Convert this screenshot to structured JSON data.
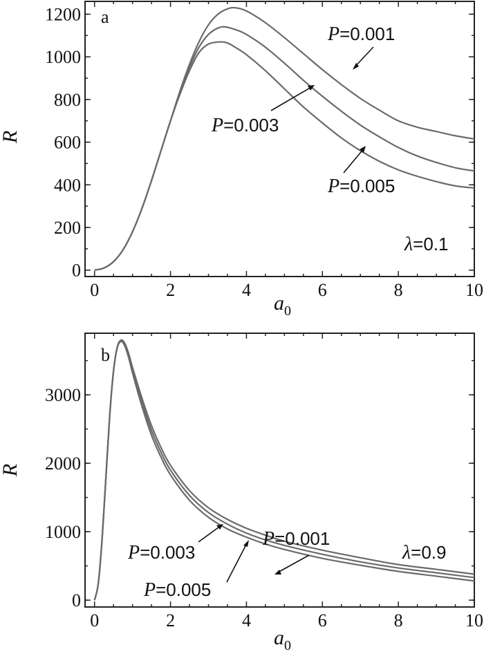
{
  "chart_data": [
    {
      "type": "line",
      "panel_label": "a",
      "xlabel": "a",
      "xlabel_sub": "0",
      "ylabel": "R",
      "xlim": [
        -0.25,
        10
      ],
      "ylim": [
        -30,
        1260
      ],
      "xticks": [
        0,
        2,
        4,
        6,
        8,
        10
      ],
      "yticks": [
        0,
        200,
        400,
        600,
        800,
        1000,
        1200
      ],
      "annotation": {
        "symbol": "λ",
        "text": "=0.1"
      },
      "grid": false,
      "series": [
        {
          "name": "P=0.001",
          "x": [
            0,
            0.25,
            0.5,
            0.75,
            1,
            1.25,
            1.5,
            1.75,
            2,
            2.25,
            2.5,
            2.75,
            3,
            3.25,
            3.5,
            3.7,
            4,
            4.5,
            5,
            5.5,
            6,
            6.5,
            7,
            7.5,
            8,
            8.5,
            9,
            9.5,
            10
          ],
          "y": [
            0,
            10,
            40,
            95,
            180,
            290,
            420,
            560,
            700,
            840,
            965,
            1070,
            1150,
            1200,
            1225,
            1230,
            1215,
            1160,
            1090,
            1015,
            940,
            870,
            805,
            750,
            700,
            670,
            650,
            630,
            615
          ]
        },
        {
          "name": "P=0.003",
          "x": [
            0,
            0.25,
            0.5,
            0.75,
            1,
            1.25,
            1.5,
            1.75,
            2,
            2.25,
            2.5,
            2.75,
            3,
            3.25,
            3.45,
            3.75,
            4,
            4.5,
            5,
            5.5,
            6,
            6.5,
            7,
            7.5,
            8,
            8.5,
            9,
            9.5,
            10
          ],
          "y": [
            0,
            10,
            40,
            95,
            180,
            290,
            420,
            560,
            700,
            830,
            950,
            1045,
            1105,
            1135,
            1140,
            1125,
            1105,
            1045,
            970,
            890,
            815,
            745,
            680,
            625,
            575,
            535,
            505,
            480,
            465
          ]
        },
        {
          "name": "P=0.005",
          "x": [
            0,
            0.25,
            0.5,
            0.75,
            1,
            1.25,
            1.5,
            1.75,
            2,
            2.25,
            2.5,
            2.75,
            3,
            3.3,
            3.5,
            3.75,
            4,
            4.5,
            5,
            5.5,
            6,
            6.5,
            7,
            7.5,
            8,
            8.5,
            9,
            9.5,
            10
          ],
          "y": [
            0,
            10,
            40,
            95,
            180,
            290,
            420,
            560,
            700,
            825,
            935,
            1020,
            1060,
            1070,
            1065,
            1040,
            1010,
            935,
            850,
            765,
            690,
            620,
            560,
            510,
            470,
            440,
            415,
            395,
            385
          ]
        }
      ],
      "labels": [
        {
          "prefix": "P",
          "text": "=0.001"
        },
        {
          "prefix": "P",
          "text": "=0.003"
        },
        {
          "prefix": "P",
          "text": "=0.005"
        }
      ]
    },
    {
      "type": "line",
      "panel_label": "b",
      "xlabel": "a",
      "xlabel_sub": "0",
      "ylabel": "R",
      "xlim": [
        -0.25,
        10
      ],
      "ylim": [
        -100,
        3900
      ],
      "xticks": [
        0,
        2,
        4,
        6,
        8,
        10
      ],
      "yticks": [
        0,
        1000,
        2000,
        3000
      ],
      "annotation": {
        "symbol": "λ",
        "text": "=0.9"
      },
      "grid": false,
      "series": [
        {
          "name": "P=0.001",
          "x": [
            0,
            0.1,
            0.2,
            0.3,
            0.4,
            0.5,
            0.6,
            0.7,
            0.8,
            0.9,
            1,
            1.25,
            1.5,
            1.75,
            2,
            2.5,
            3,
            3.5,
            4,
            4.5,
            5,
            6,
            7,
            8,
            9,
            10
          ],
          "y": [
            0,
            250,
            900,
            1800,
            2700,
            3350,
            3700,
            3800,
            3750,
            3600,
            3400,
            2950,
            2550,
            2230,
            1970,
            1600,
            1350,
            1180,
            1050,
            950,
            860,
            730,
            620,
            520,
            450,
            380
          ]
        },
        {
          "name": "P=0.003",
          "x": [
            0,
            0.1,
            0.2,
            0.3,
            0.4,
            0.5,
            0.6,
            0.7,
            0.8,
            0.9,
            1,
            1.25,
            1.5,
            1.75,
            2,
            2.5,
            3,
            3.5,
            4,
            4.5,
            5,
            6,
            7,
            8,
            9,
            10
          ],
          "y": [
            0,
            250,
            900,
            1800,
            2700,
            3350,
            3700,
            3790,
            3730,
            3570,
            3360,
            2890,
            2480,
            2160,
            1900,
            1530,
            1280,
            1110,
            980,
            880,
            800,
            670,
            560,
            470,
            400,
            330
          ]
        },
        {
          "name": "P=0.005",
          "x": [
            0,
            0.1,
            0.2,
            0.3,
            0.4,
            0.5,
            0.6,
            0.7,
            0.8,
            0.9,
            1,
            1.25,
            1.5,
            1.75,
            2,
            2.5,
            3,
            3.5,
            4,
            4.5,
            5,
            6,
            7,
            8,
            9,
            10
          ],
          "y": [
            0,
            250,
            900,
            1800,
            2700,
            3350,
            3690,
            3780,
            3710,
            3540,
            3320,
            2830,
            2410,
            2090,
            1830,
            1460,
            1210,
            1040,
            920,
            820,
            740,
            610,
            510,
            420,
            350,
            280
          ]
        }
      ],
      "labels": [
        {
          "prefix": "P",
          "text": "=0.001"
        },
        {
          "prefix": "P",
          "text": "=0.003"
        },
        {
          "prefix": "P",
          "text": "=0.005"
        }
      ]
    }
  ]
}
